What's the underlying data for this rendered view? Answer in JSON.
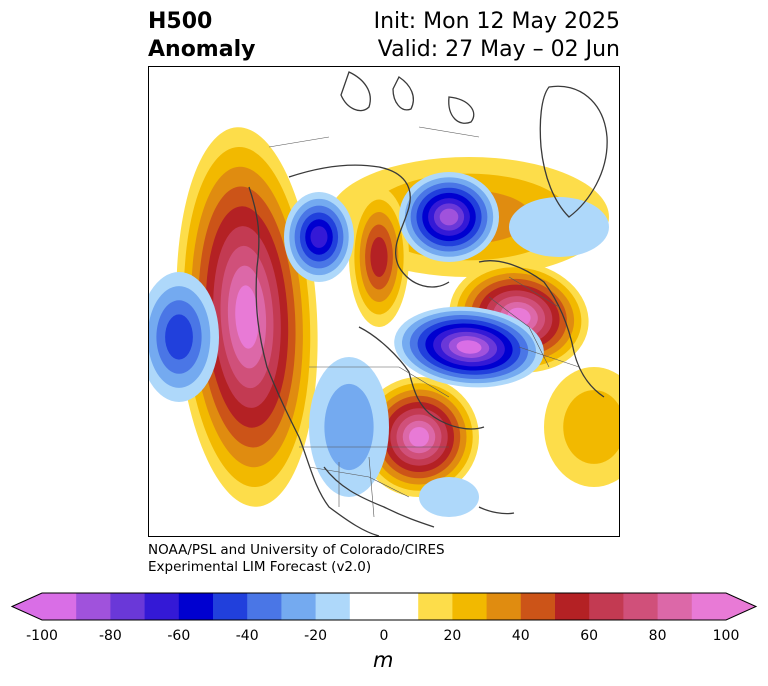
{
  "title": {
    "left_line1": "H500",
    "left_line2": "Anomaly",
    "right_line1": "Init: Mon 12 May 2025",
    "right_line2": "Valid: 27 May – 02 Jun"
  },
  "credit": {
    "line1": "NOAA/PSL and University of Colorado/CIRES",
    "line2": "Experimental LIM Forecast (v2.0)"
  },
  "colorbar": {
    "unit": "m",
    "ticks": [
      "-100",
      "-80",
      "-60",
      "-40",
      "-20",
      "0",
      "20",
      "40",
      "60",
      "80",
      "100"
    ],
    "colors": [
      "#d96ee6",
      "#a052dc",
      "#6a38d8",
      "#3419d6",
      "#0000d0",
      "#2140dc",
      "#4a76e6",
      "#74aaf0",
      "#aed8fa",
      "#ffffff",
      "#ffffff",
      "#fddd4a",
      "#f2b900",
      "#e08c10",
      "#cc5418",
      "#b42124",
      "#c33a52",
      "#d0507a",
      "#dc68a8",
      "#e87ad6"
    ],
    "under_color": "#d96ee6",
    "over_color": "#e87ad6"
  },
  "map": {
    "projection": "north-polar-stereographic",
    "field": "500 hPa height anomaly",
    "neg_colors": [
      "#aed8fa",
      "#74aaf0",
      "#4a76e6",
      "#2140dc",
      "#0000d0",
      "#3419d6",
      "#6a38d8",
      "#a052dc",
      "#d96ee6"
    ],
    "pos_colors": [
      "#fddd4a",
      "#f2b900",
      "#e08c10",
      "#cc5418",
      "#b42124",
      "#c33a52",
      "#d0507a",
      "#dc68a8",
      "#e87ad6"
    ]
  }
}
